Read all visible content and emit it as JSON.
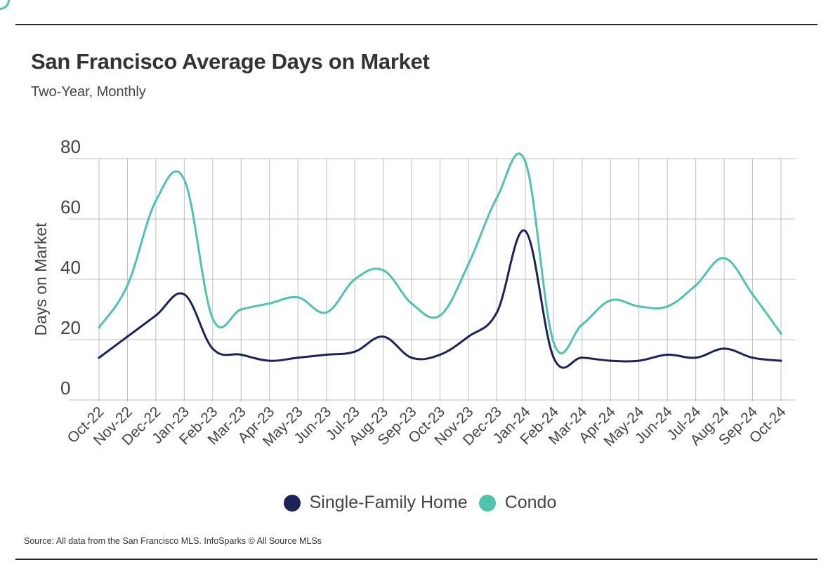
{
  "header": {
    "title": "San Francisco Average Days on Market",
    "subtitle": "Two-Year, Monthly"
  },
  "footer": {
    "source": "Source:  All data from the San Francisco MLS. InfoSparks © All Source MLSs"
  },
  "colors": {
    "single_family": "#1c2357",
    "condo": "#4fc3b0",
    "grid": "#bdbdbd"
  },
  "chart_data": {
    "type": "line",
    "title": "San Francisco Average Days on Market",
    "subtitle": "Two-Year, Monthly",
    "xlabel": "",
    "ylabel": "Days on Market",
    "ylim": [
      0,
      80
    ],
    "yticks": [
      0,
      20,
      40,
      60,
      80
    ],
    "grid": true,
    "legend_position": "bottom",
    "categories": [
      "Oct-22",
      "Nov-22",
      "Dec-22",
      "Jan-23",
      "Feb-23",
      "Mar-23",
      "Apr-23",
      "May-23",
      "Jun-23",
      "Jul-23",
      "Aug-23",
      "Sep-23",
      "Oct-23",
      "Nov-23",
      "Dec-23",
      "Jan-24",
      "Feb-24",
      "Mar-24",
      "Apr-24",
      "May-24",
      "Jun-24",
      "Jul-24",
      "Aug-24",
      "Sep-24",
      "Oct-24"
    ],
    "series": [
      {
        "name": "Single-Family Home",
        "color": "#1c2357",
        "values": [
          14,
          21,
          28,
          35,
          17,
          15,
          13,
          14,
          15,
          16,
          21,
          14,
          15,
          21,
          29,
          56,
          14,
          14,
          13,
          13,
          15,
          14,
          17,
          14,
          13
        ]
      },
      {
        "name": "Condo",
        "color": "#4fc3b0",
        "values": [
          24,
          38,
          66,
          73,
          27,
          30,
          32,
          34,
          29,
          40,
          43,
          32,
          28,
          45,
          67,
          79,
          19,
          25,
          33,
          31,
          31,
          38,
          47,
          35,
          22
        ]
      }
    ]
  }
}
